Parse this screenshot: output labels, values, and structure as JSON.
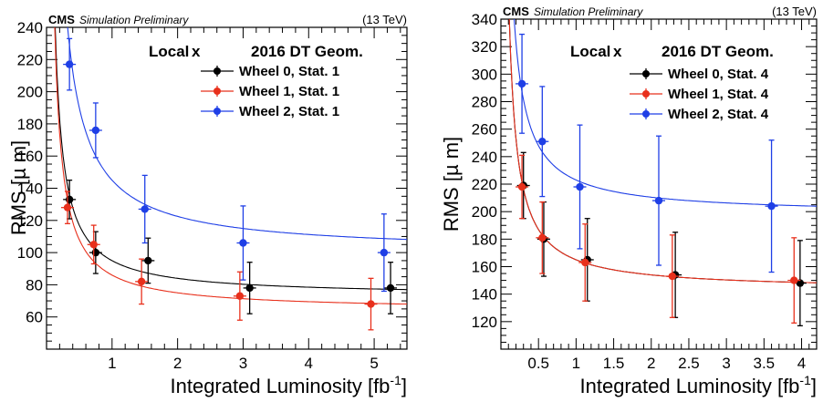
{
  "chart_data": [
    {
      "type": "scatter",
      "header": {
        "experiment": "CMS",
        "status": "Simulation Preliminary",
        "energy": "(13 TeV)"
      },
      "annotation": {
        "prefix": "Local",
        "variable": "x",
        "geometry": "2016 DT Geom."
      },
      "xlabel": "Integrated Luminosity [fb",
      "xlabel_sup": "-1",
      "xlabel_end": "]",
      "ylabel": "RMS [µ m]",
      "xlim": [
        0,
        5.5
      ],
      "ylim": [
        40,
        240
      ],
      "xticks": [
        1,
        2,
        3,
        4,
        5
      ],
      "yticks": [
        60,
        80,
        100,
        120,
        140,
        160,
        180,
        200,
        220,
        240
      ],
      "legend_position": "top-right",
      "series": [
        {
          "name": "Wheel 0, Stat. 1",
          "color": "#000000",
          "points": [
            {
              "x": 0.35,
              "y": 133,
              "yerr": 12
            },
            {
              "x": 0.75,
              "y": 100,
              "yerr": 13
            },
            {
              "x": 1.55,
              "y": 95,
              "yerr": 14
            },
            {
              "x": 3.1,
              "y": 78,
              "yerr": 16
            },
            {
              "x": 5.25,
              "y": 78,
              "yerr": 16
            }
          ],
          "fit": {
            "a": 73,
            "b": 22
          }
        },
        {
          "name": "Wheel 1, Stat. 1",
          "color": "#e8301c",
          "points": [
            {
              "x": 0.32,
              "y": 128,
              "yerr": 10
            },
            {
              "x": 0.72,
              "y": 105,
              "yerr": 12
            },
            {
              "x": 1.45,
              "y": 82,
              "yerr": 14
            },
            {
              "x": 2.95,
              "y": 73,
              "yerr": 15
            },
            {
              "x": 4.95,
              "y": 68,
              "yerr": 16
            }
          ],
          "fit": {
            "a": 64,
            "b": 22
          }
        },
        {
          "name": "Wheel 2, Stat. 1",
          "color": "#1f3fe6",
          "points": [
            {
              "x": 0.35,
              "y": 217,
              "yerr": 16
            },
            {
              "x": 0.75,
              "y": 176,
              "yerr": 17
            },
            {
              "x": 1.5,
              "y": 127,
              "yerr": 21
            },
            {
              "x": 3.0,
              "y": 106,
              "yerr": 23
            },
            {
              "x": 5.15,
              "y": 100,
              "yerr": 24
            }
          ],
          "fit": {
            "a": 100,
            "b": 45
          }
        }
      ]
    },
    {
      "type": "scatter",
      "header": {
        "experiment": "CMS",
        "status": "Simulation Preliminary",
        "energy": "(13 TeV)"
      },
      "annotation": {
        "prefix": "Local",
        "variable": "x",
        "geometry": "2016 DT Geom."
      },
      "xlabel": "Integrated Luminosity [fb",
      "xlabel_sup": "-1",
      "xlabel_end": "]",
      "ylabel": "RMS [µ m]",
      "xlim": [
        0,
        4.2
      ],
      "ylim": [
        100,
        340
      ],
      "xticks": [
        0.5,
        1,
        1.5,
        2,
        2.5,
        3,
        3.5,
        4
      ],
      "yticks": [
        120,
        140,
        160,
        180,
        200,
        220,
        240,
        260,
        280,
        300,
        320,
        340
      ],
      "legend_position": "top-right",
      "series": [
        {
          "name": "Wheel 0, Stat. 4",
          "color": "#000000",
          "points": [
            {
              "x": 0.3,
              "y": 219,
              "yerr": 24
            },
            {
              "x": 0.57,
              "y": 180,
              "yerr": 27
            },
            {
              "x": 1.15,
              "y": 165,
              "yerr": 30
            },
            {
              "x": 2.32,
              "y": 154,
              "yerr": 31
            },
            {
              "x": 3.98,
              "y": 148,
              "yerr": 31
            }
          ],
          "fit": {
            "a": 143,
            "b": 22
          }
        },
        {
          "name": "Wheel 1, Stat. 4",
          "color": "#e8301c",
          "points": [
            {
              "x": 0.28,
              "y": 218,
              "yerr": 23
            },
            {
              "x": 0.55,
              "y": 181,
              "yerr": 26
            },
            {
              "x": 1.12,
              "y": 163,
              "yerr": 28
            },
            {
              "x": 2.28,
              "y": 153,
              "yerr": 30
            },
            {
              "x": 3.9,
              "y": 150,
              "yerr": 31
            }
          ],
          "fit": {
            "a": 143,
            "b": 22
          }
        },
        {
          "name": "Wheel 2, Stat. 4",
          "color": "#1f3fe6",
          "points": [
            {
              "x": 0.28,
              "y": 293,
              "yerr": 36
            },
            {
              "x": 0.55,
              "y": 251,
              "yerr": 40
            },
            {
              "x": 1.05,
              "y": 218,
              "yerr": 45
            },
            {
              "x": 2.1,
              "y": 208,
              "yerr": 47
            },
            {
              "x": 3.6,
              "y": 204,
              "yerr": 48
            }
          ],
          "fit": {
            "a": 198,
            "b": 25
          }
        }
      ]
    }
  ]
}
